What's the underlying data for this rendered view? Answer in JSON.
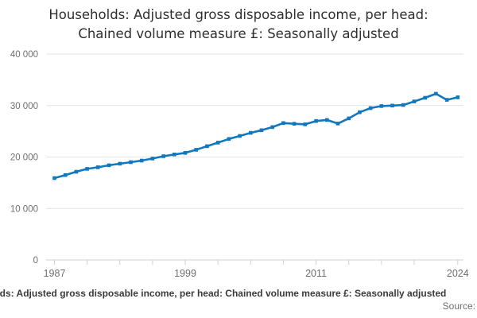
{
  "title": {
    "line1": "Households: Adjusted gross disposable income, per head:",
    "line2": "Chained volume measure £: Seasonally adjusted"
  },
  "chart_data": {
    "type": "line",
    "title": "Households: Adjusted gross disposable income, per head: Chained volume measure £: Seasonally adjusted",
    "x": [
      1987,
      1988,
      1989,
      1990,
      1991,
      1992,
      1993,
      1994,
      1995,
      1996,
      1997,
      1998,
      1999,
      2000,
      2001,
      2002,
      2003,
      2004,
      2005,
      2006,
      2007,
      2008,
      2009,
      2010,
      2011,
      2012,
      2013,
      2014,
      2015,
      2016,
      2017,
      2018,
      2019,
      2020,
      2021,
      2022,
      2023,
      2024
    ],
    "values": [
      15900,
      16500,
      17150,
      17700,
      18000,
      18400,
      18700,
      19000,
      19300,
      19700,
      20150,
      20500,
      20800,
      21400,
      22100,
      22800,
      23500,
      24100,
      24700,
      25200,
      25800,
      26600,
      26450,
      26350,
      27000,
      27200,
      26500,
      27500,
      28700,
      29500,
      29900,
      30000,
      30100,
      30800,
      31500,
      32300,
      31100,
      31600
    ],
    "xlabel": "",
    "ylabel": "",
    "ylim": [
      0,
      40000
    ],
    "grid": true,
    "legend": "none",
    "y_ticks": [
      {
        "value": 0,
        "label": "0"
      },
      {
        "value": 10000,
        "label": "10 000"
      },
      {
        "value": 20000,
        "label": "20 000"
      },
      {
        "value": 30000,
        "label": "30 000"
      },
      {
        "value": 40000,
        "label": "40 000"
      }
    ],
    "x_labeled_ticks": [
      {
        "year": 1987,
        "label": "1987"
      },
      {
        "year": 1999,
        "label": "1999"
      },
      {
        "year": 2011,
        "label": "2011"
      },
      {
        "year": 2024,
        "label": "2024"
      }
    ],
    "x_minor_tick_years": [
      1990,
      1993,
      1996,
      2002,
      2005,
      2008,
      2014,
      2017,
      2020
    ]
  },
  "colors": {
    "line": "#1278be",
    "grid": "#e4e4e4",
    "axis": "#c9d3df",
    "tick_text": "#6f6f6f",
    "title_text": "#2e2e2e",
    "footer_text": "#3a3a3a"
  },
  "footer": {
    "caption": "Households: Adjusted gross disposable income, per head: Chained volume measure £: Seasonally adjusted",
    "source_label": "Source:"
  }
}
